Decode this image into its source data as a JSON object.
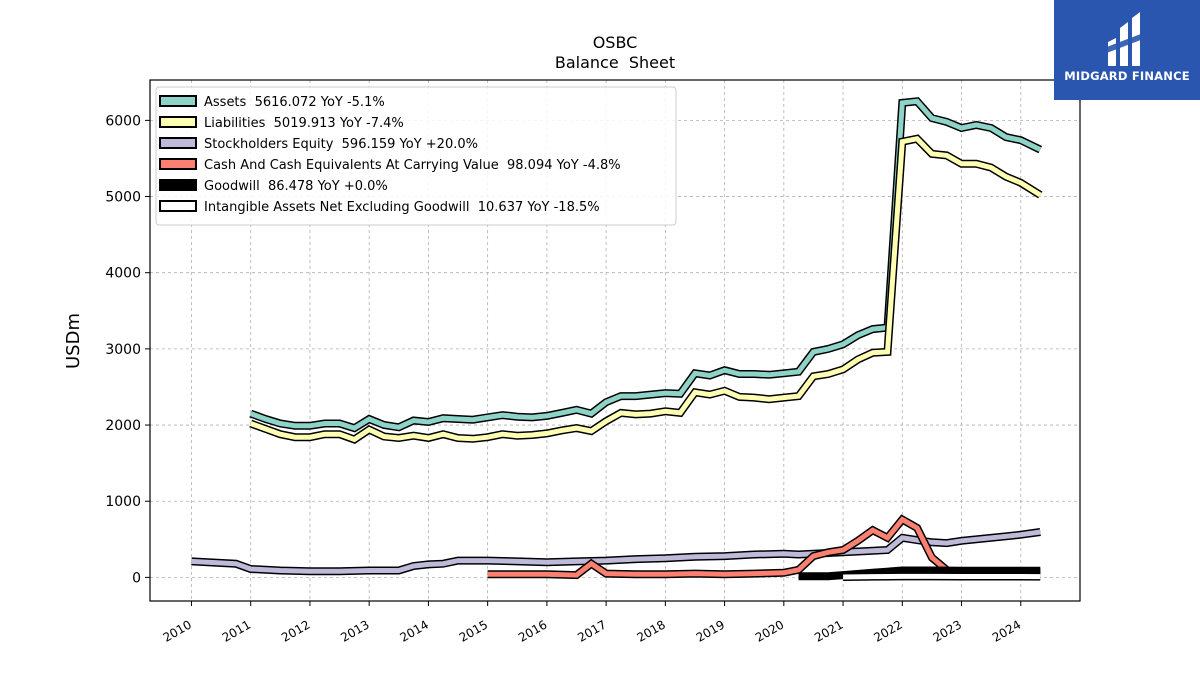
{
  "brand": {
    "name": "MIDGARD FINANCE",
    "bg_color": "#2a56b0"
  },
  "chart_data": {
    "type": "line",
    "title": "OSBC",
    "subtitle": "Balance  Sheet",
    "xlabel": "",
    "ylabel": "USDm",
    "xlim": [
      2009.3,
      2025.0
    ],
    "ylim": [
      -310,
      6530
    ],
    "x_ticks": [
      "2010",
      "2011",
      "2012",
      "2013",
      "2014",
      "2015",
      "2016",
      "2017",
      "2018",
      "2019",
      "2020",
      "2021",
      "2022",
      "2023",
      "2024"
    ],
    "y_ticks": [
      0,
      1000,
      2000,
      3000,
      4000,
      5000,
      6000
    ],
    "grid": true,
    "legend_position": "top-left",
    "series": [
      {
        "name": "Assets",
        "legend_label": "Assets  5616.072 YoY -5.1%",
        "color": "#8dd3c7",
        "x": [
          2011.0,
          2011.25,
          2011.5,
          2011.75,
          2012.0,
          2012.25,
          2012.5,
          2012.75,
          2013.0,
          2013.25,
          2013.5,
          2013.75,
          2014.0,
          2014.25,
          2014.5,
          2014.75,
          2015.0,
          2015.25,
          2015.5,
          2015.75,
          2016.0,
          2016.25,
          2016.5,
          2016.75,
          2017.0,
          2017.25,
          2017.5,
          2017.75,
          2018.0,
          2018.25,
          2018.5,
          2018.75,
          2019.0,
          2019.25,
          2019.5,
          2019.75,
          2020.0,
          2020.25,
          2020.5,
          2020.75,
          2021.0,
          2021.25,
          2021.5,
          2021.75,
          2022.0,
          2022.25,
          2022.5,
          2022.75,
          2023.0,
          2023.25,
          2023.5,
          2023.75,
          2024.0,
          2024.33
        ],
        "values": [
          2150,
          2080,
          2020,
          1990,
          1990,
          2020,
          2020,
          1960,
          2080,
          2000,
          1970,
          2060,
          2040,
          2090,
          2080,
          2070,
          2100,
          2130,
          2110,
          2100,
          2120,
          2160,
          2200,
          2150,
          2300,
          2380,
          2380,
          2400,
          2420,
          2410,
          2680,
          2650,
          2720,
          2670,
          2670,
          2660,
          2680,
          2700,
          2960,
          3000,
          3060,
          3180,
          3260,
          3280,
          6230,
          6250,
          6030,
          5980,
          5900,
          5940,
          5900,
          5780,
          5740,
          5616
        ]
      },
      {
        "name": "Liabilities",
        "legend_label": "Liabilities  5019.913 YoY -7.4%",
        "color": "#ffffb3",
        "x": [
          2011.0,
          2011.25,
          2011.5,
          2011.75,
          2012.0,
          2012.25,
          2012.5,
          2012.75,
          2013.0,
          2013.25,
          2013.5,
          2013.75,
          2014.0,
          2014.25,
          2014.5,
          2014.75,
          2015.0,
          2015.25,
          2015.5,
          2015.75,
          2016.0,
          2016.25,
          2016.5,
          2016.75,
          2017.0,
          2017.25,
          2017.5,
          2017.75,
          2018.0,
          2018.25,
          2018.5,
          2018.75,
          2019.0,
          2019.25,
          2019.5,
          2019.75,
          2020.0,
          2020.25,
          2020.5,
          2020.75,
          2021.0,
          2021.25,
          2021.5,
          2021.75,
          2022.0,
          2022.25,
          2022.5,
          2022.75,
          2023.0,
          2023.25,
          2023.5,
          2023.75,
          2024.0,
          2024.33
        ],
        "values": [
          2020,
          1950,
          1880,
          1840,
          1840,
          1880,
          1880,
          1810,
          1940,
          1850,
          1830,
          1860,
          1830,
          1880,
          1830,
          1820,
          1840,
          1880,
          1860,
          1870,
          1890,
          1930,
          1960,
          1920,
          2050,
          2160,
          2140,
          2150,
          2180,
          2160,
          2430,
          2400,
          2450,
          2370,
          2360,
          2340,
          2360,
          2380,
          2640,
          2670,
          2730,
          2860,
          2950,
          2960,
          5720,
          5760,
          5560,
          5540,
          5430,
          5430,
          5380,
          5260,
          5180,
          5020
        ]
      },
      {
        "name": "Stockholders Equity",
        "legend_label": "Stockholders Equity  596.159 YoY +20.0%",
        "color": "#bebada",
        "x": [
          2010.0,
          2010.75,
          2011.0,
          2011.5,
          2012.0,
          2012.5,
          2013.0,
          2013.5,
          2013.75,
          2014.0,
          2014.25,
          2014.5,
          2015.0,
          2015.5,
          2016.0,
          2016.5,
          2017.0,
          2017.5,
          2018.0,
          2018.5,
          2019.0,
          2019.5,
          2020.0,
          2020.25,
          2020.5,
          2020.75,
          2021.0,
          2021.25,
          2021.5,
          2021.75,
          2022.0,
          2022.25,
          2022.5,
          2022.75,
          2023.0,
          2023.25,
          2023.5,
          2023.75,
          2024.0,
          2024.33
        ],
        "values": [
          210,
          180,
          110,
          90,
          80,
          80,
          90,
          90,
          150,
          170,
          180,
          220,
          220,
          210,
          200,
          210,
          220,
          240,
          250,
          270,
          280,
          300,
          310,
          300,
          310,
          320,
          330,
          340,
          350,
          360,
          520,
          490,
          460,
          450,
          480,
          500,
          520,
          540,
          560,
          596
        ]
      },
      {
        "name": "Cash And Cash Equivalents At Carrying Value",
        "legend_label": "Cash And Cash Equivalents At Carrying Value  98.094 YoY -4.8%",
        "color": "#fb8072",
        "x": [
          2015.0,
          2015.5,
          2016.0,
          2016.5,
          2016.75,
          2017.0,
          2017.5,
          2018.0,
          2018.5,
          2019.0,
          2019.5,
          2020.0,
          2020.25,
          2020.5,
          2020.75,
          2021.0,
          2021.25,
          2021.5,
          2021.75,
          2022.0,
          2022.25,
          2022.5,
          2022.75
        ],
        "values": [
          40,
          40,
          40,
          30,
          180,
          50,
          40,
          40,
          50,
          40,
          50,
          60,
          100,
          280,
          330,
          360,
          480,
          620,
          520,
          760,
          650,
          260,
          98
        ]
      },
      {
        "name": "Goodwill",
        "legend_label": "Goodwill  86.478 YoY +0.0%",
        "color": "#000000",
        "x": [
          2020.25,
          2020.75,
          2021.0,
          2021.5,
          2022.0,
          2022.5,
          2023.0,
          2023.5,
          2024.0,
          2024.33
        ],
        "values": [
          15,
          15,
          30,
          60,
          90,
          90,
          86,
          86,
          86,
          86
        ]
      },
      {
        "name": "Intangible Assets Net Excluding Goodwill",
        "legend_label": "Intangible Assets Net Excluding Goodwill  10.637 YoY -18.5%",
        "color": "#ffffff",
        "x": [
          2021.0,
          2021.5,
          2022.0,
          2022.5,
          2023.0,
          2023.5,
          2024.0,
          2024.33
        ],
        "values": [
          5,
          10,
          13,
          13,
          12,
          11,
          11,
          10.6
        ]
      }
    ]
  }
}
